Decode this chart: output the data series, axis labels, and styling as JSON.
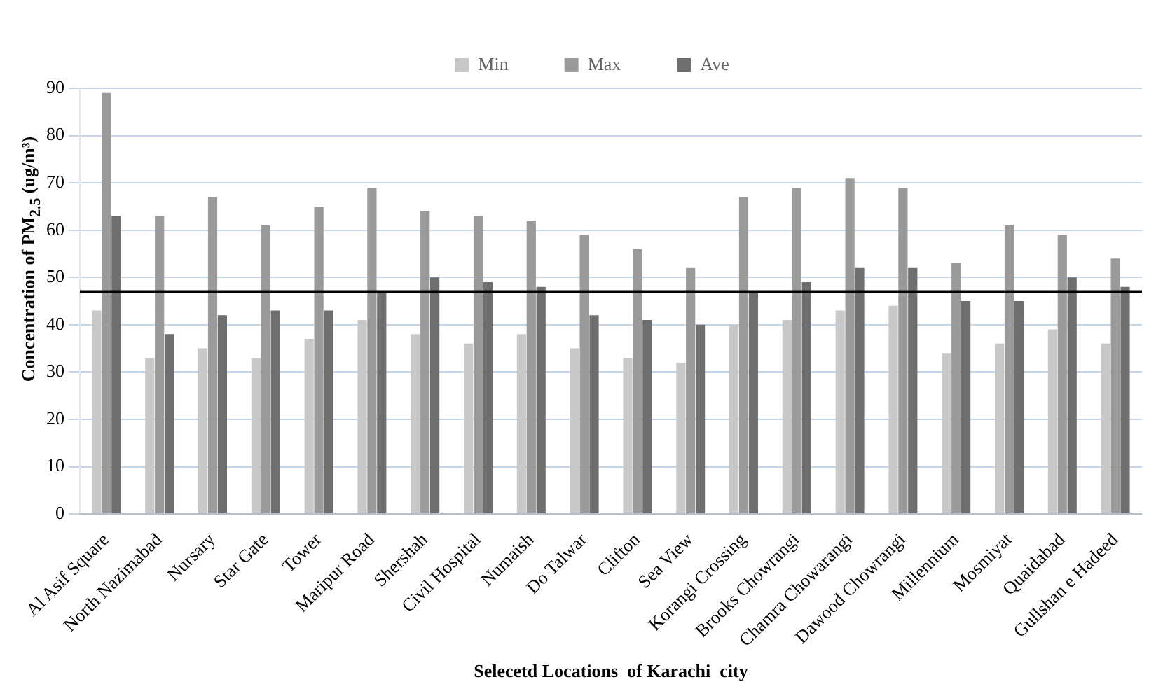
{
  "chart_data": {
    "type": "bar",
    "xlabel": "Selecetd Locations  of Karachi  city",
    "ylabel": "Concentration  of PM$_{2.5}$ (ug/m³)",
    "categories": [
      "Al Asif Square",
      "North Nazimabad",
      "Nursary",
      "Star Gate",
      "Tower",
      "Maripur Road",
      "Shershah",
      "Civil Hospital",
      "Numaish",
      "Do Talwar",
      "Clifton",
      "Sea View",
      "Korangi Crossing",
      "Brooks Chowrangi",
      "Chamra Chowarangi",
      "Dawood Chowrangi",
      "Millennium",
      "Mosmiyat",
      "Quaidabad",
      "Gullshan e Hadeed"
    ],
    "series": [
      {
        "name": "Min",
        "color": "#c8c8c8",
        "values": [
          43,
          33,
          35,
          33,
          37,
          41,
          38,
          36,
          38,
          35,
          33,
          32,
          40,
          41,
          43,
          44,
          34,
          36,
          39,
          36
        ]
      },
      {
        "name": "Max",
        "color": "#9a9a9a",
        "values": [
          89,
          63,
          67,
          61,
          65,
          69,
          64,
          63,
          62,
          59,
          56,
          52,
          67,
          69,
          71,
          69,
          53,
          61,
          59,
          54
        ]
      },
      {
        "name": "Ave",
        "color": "#6e6e6e",
        "values": [
          63,
          38,
          42,
          43,
          43,
          47,
          50,
          49,
          48,
          42,
          41,
          40,
          47,
          49,
          52,
          52,
          45,
          45,
          50,
          48
        ]
      }
    ],
    "ylim": [
      0,
      90
    ],
    "yticks": [
      0,
      10,
      20,
      30,
      40,
      50,
      60,
      70,
      80,
      90
    ],
    "ref_lines": [
      {
        "axis": "y",
        "value": 47,
        "color": "#000000"
      }
    ],
    "grid": "y",
    "legend": "top"
  }
}
